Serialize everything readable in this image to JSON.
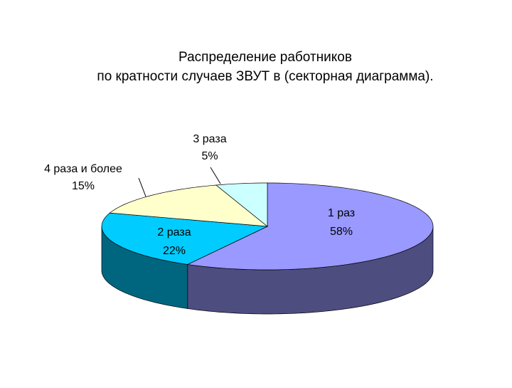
{
  "chart_data": {
    "type": "pie",
    "title": [
      "Распределение работников",
      "по кратности случаев ЗВУТ в  (секторная диаграмма)."
    ],
    "categories": [
      "1 раз",
      "2 раза",
      "4 раза и более",
      "3 раза"
    ],
    "values": [
      58,
      22,
      15,
      5
    ],
    "value_labels": [
      "58%",
      "22%",
      "15%",
      "5%"
    ],
    "colors": [
      "#9999ff",
      "#00ccff",
      "#ffffcc",
      "#ccffff"
    ]
  }
}
